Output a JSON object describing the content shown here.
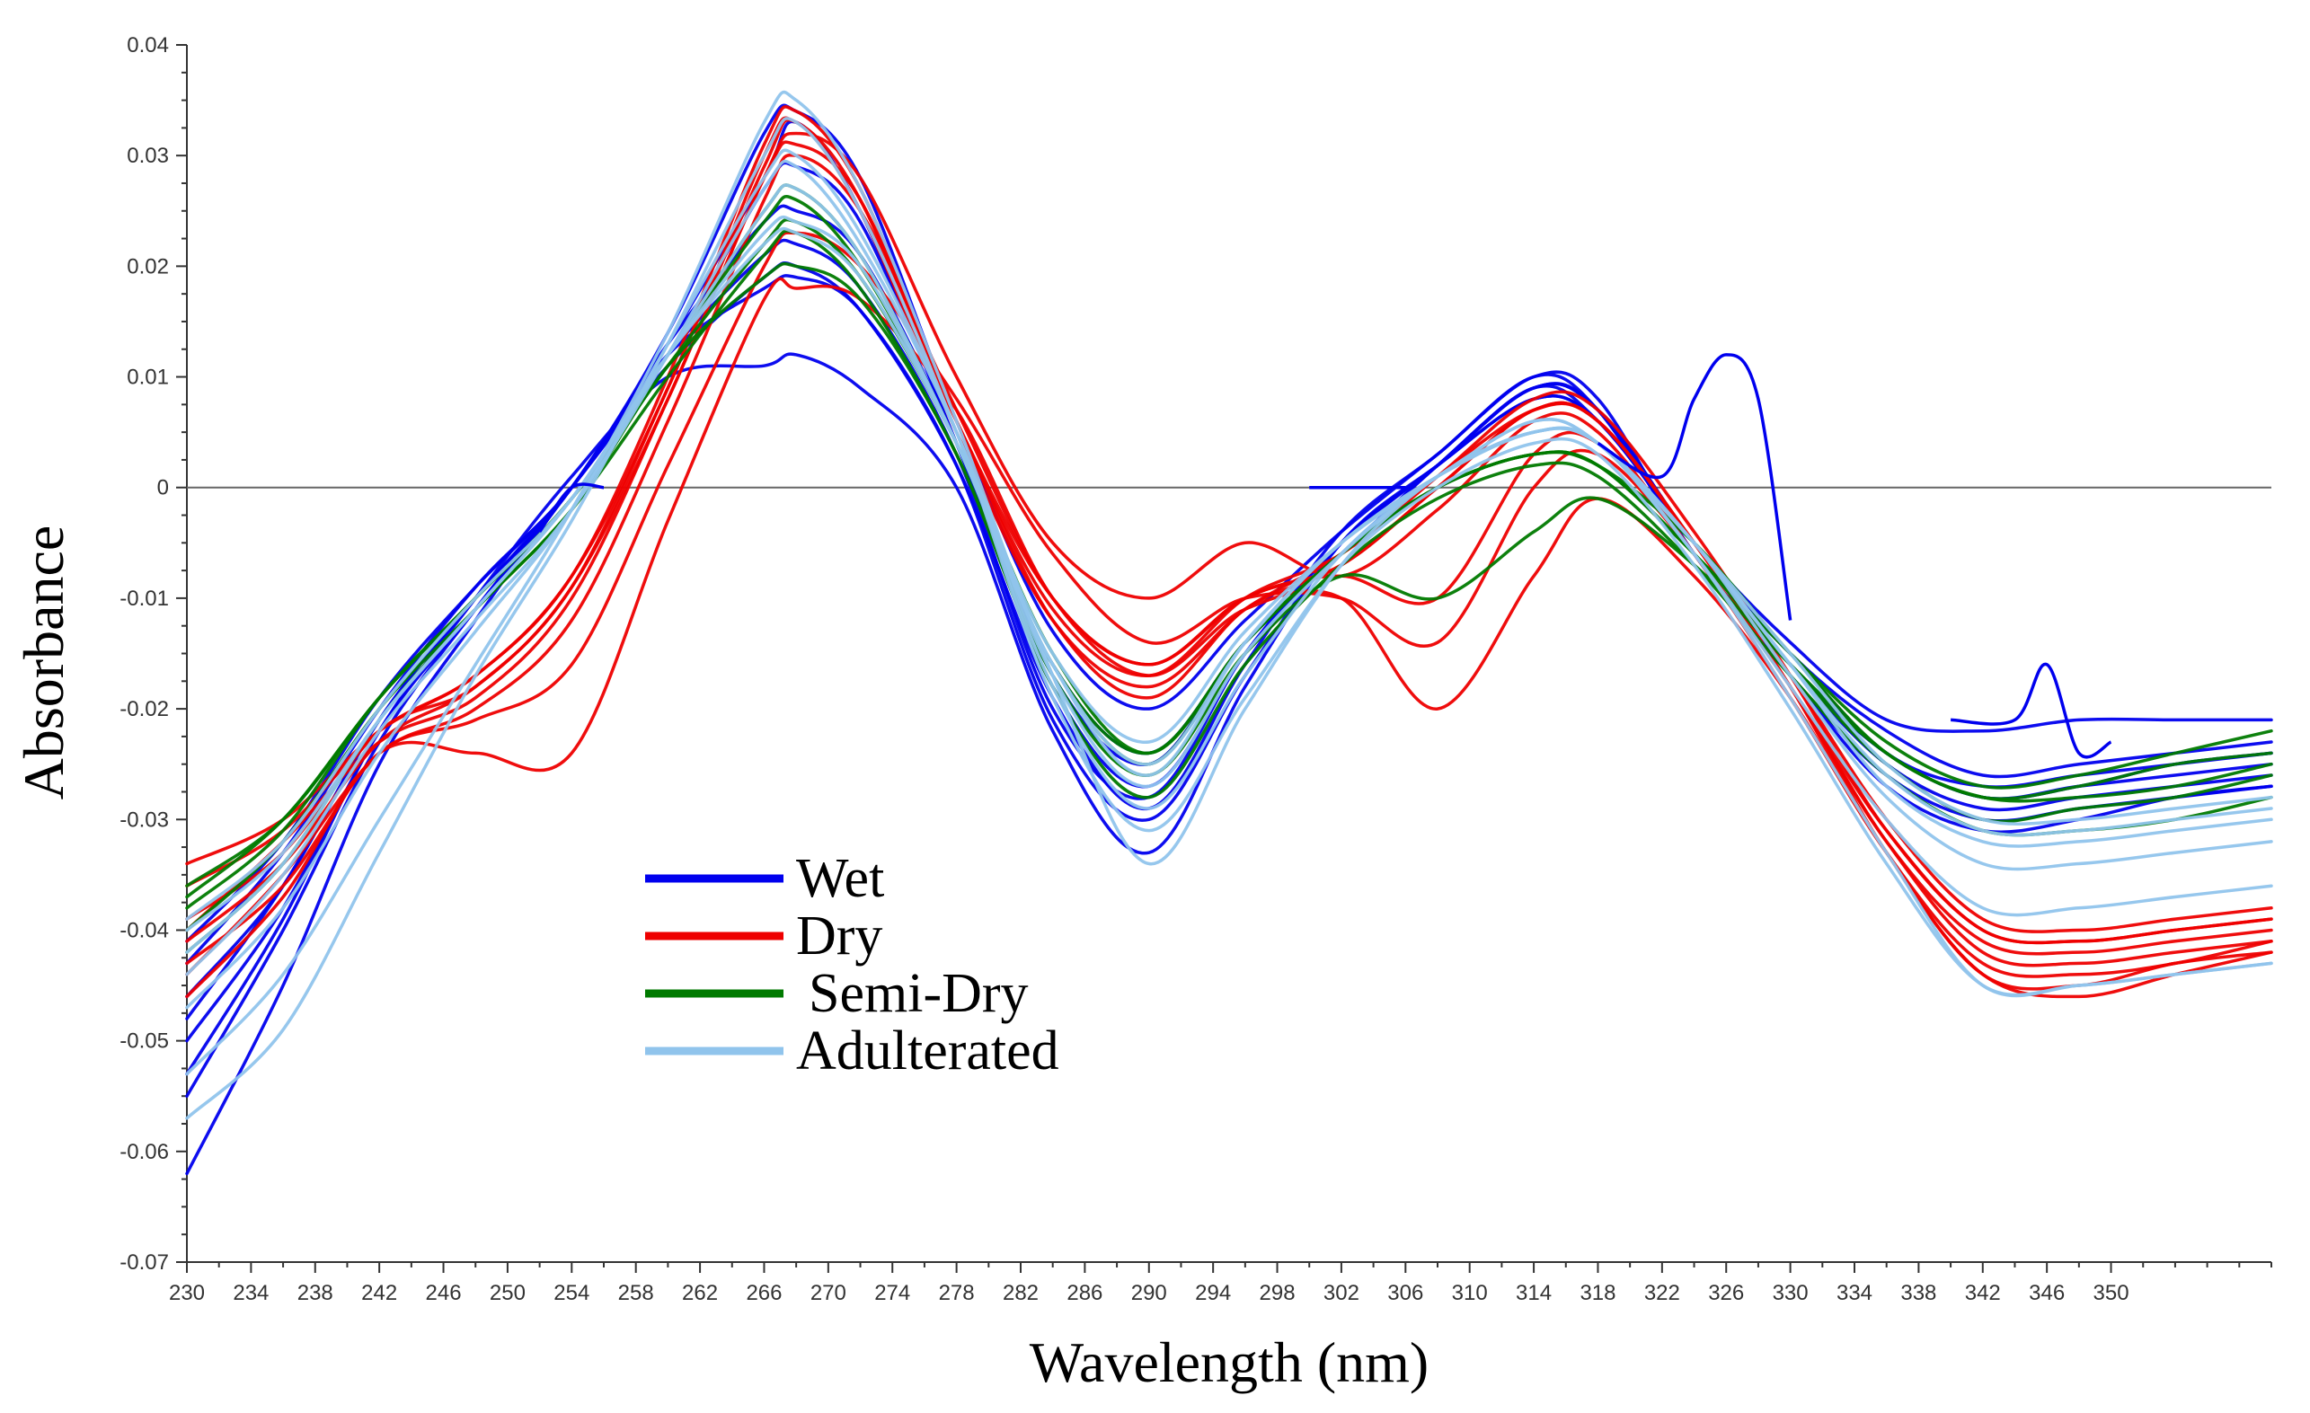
{
  "chart_data": {
    "type": "line",
    "title": "",
    "xlabel": "Wavelength (nm)",
    "ylabel": "Absorbance",
    "xlim": [
      230,
      360
    ],
    "ylim": [
      -0.07,
      0.04
    ],
    "grid": false,
    "zero_line": true,
    "legend_position": "lower-left",
    "x_ticks": [
      230,
      234,
      238,
      242,
      246,
      250,
      254,
      258,
      262,
      266,
      270,
      274,
      278,
      282,
      286,
      290,
      294,
      298,
      302,
      306,
      310,
      314,
      318,
      322,
      326,
      330,
      334,
      338,
      342,
      346,
      350
    ],
    "x_tick_labels": [
      "230",
      "234",
      "238",
      "242",
      "246",
      "250",
      "254",
      "258",
      "262",
      "266",
      "270",
      "274",
      "278",
      "282",
      "286",
      "290",
      "294",
      "298",
      "302",
      "306",
      "310",
      "314",
      "318",
      "322",
      "326",
      "330",
      "334",
      "338",
      "342",
      "346",
      "350"
    ],
    "y_ticks": [
      0.04,
      0.03,
      0.02,
      0.01,
      0,
      -0.01,
      -0.02,
      -0.03,
      -0.04,
      -0.05,
      -0.06,
      -0.07
    ],
    "y_tick_labels": [
      "0.04",
      "0.03",
      "0.02",
      "0.01",
      "0",
      "-0.01",
      "-0.02",
      "-0.03",
      "-0.04",
      "-0.05",
      "-0.06",
      "-0.07"
    ],
    "x": [
      230,
      236,
      242,
      248,
      254,
      260,
      266,
      268,
      272,
      278,
      284,
      290,
      296,
      302,
      308,
      314,
      318,
      324,
      330,
      336,
      342,
      348,
      354,
      360
    ],
    "series": [
      {
        "name": "Wet",
        "color": "#0000ee",
        "curves": [
          [
            -0.043,
            -0.033,
            -0.02,
            -0.009,
            0.0,
            0.013,
            0.028,
            0.033,
            0.025,
            0.004,
            -0.016,
            -0.024,
            -0.014,
            -0.006,
            0.002,
            0.009,
            0.007,
            -0.005,
            -0.015,
            -0.022,
            -0.026,
            -0.025,
            -0.024,
            -0.023
          ],
          [
            -0.062,
            -0.045,
            -0.025,
            -0.012,
            0.0,
            0.011,
            0.019,
            0.02,
            0.016,
            0.002,
            -0.019,
            -0.029,
            -0.016,
            -0.004,
            0.003,
            0.01,
            0.008,
            -0.006,
            -0.016,
            -0.024,
            -0.028,
            -0.027,
            -0.025,
            -0.024
          ],
          [
            -0.05,
            -0.038,
            -0.022,
            -0.01,
            0.001,
            0.01,
            0.011,
            0.012,
            0.009,
            0.0,
            -0.022,
            -0.033,
            -0.018,
            -0.005,
            0.002,
            0.008,
            0.006,
            -0.005,
            -0.014,
            -0.021,
            -0.022,
            -0.021,
            -0.021,
            -0.021
          ],
          [
            -0.046,
            -0.036,
            -0.021,
            -0.01,
            0.0,
            0.014,
            0.032,
            0.034,
            0.028,
            0.006,
            -0.013,
            -0.02,
            -0.012,
            -0.004,
            0.003,
            0.01,
            0.007,
            -0.006,
            -0.017,
            -0.026,
            -0.03,
            -0.029,
            -0.028,
            -0.027
          ],
          [
            -0.055,
            -0.04,
            -0.023,
            -0.011,
            0.0,
            0.012,
            0.021,
            0.022,
            0.018,
            0.003,
            -0.02,
            -0.028,
            -0.015,
            -0.005,
            0.002,
            0.009,
            0.006,
            -0.005,
            -0.016,
            -0.025,
            -0.029,
            -0.028,
            -0.027,
            -0.026
          ],
          [
            -0.041,
            -0.032,
            -0.019,
            -0.009,
            0.0,
            0.013,
            0.024,
            0.025,
            0.021,
            0.004,
            -0.017,
            -0.025,
            -0.014,
            -0.006,
            0.002,
            0.009,
            0.007,
            -0.005,
            -0.015,
            -0.024,
            -0.027,
            -0.026,
            -0.025,
            -0.024
          ],
          [
            -0.048,
            -0.036,
            -0.021,
            -0.01,
            0.0,
            0.012,
            0.027,
            0.029,
            0.024,
            0.004,
            -0.018,
            -0.027,
            -0.015,
            -0.005,
            0.002,
            0.008,
            0.006,
            -0.005,
            -0.016,
            -0.024,
            -0.028,
            -0.027,
            -0.026,
            -0.025
          ],
          [
            -0.053,
            -0.039,
            -0.022,
            -0.011,
            0.0,
            0.012,
            0.018,
            0.019,
            0.016,
            0.002,
            -0.021,
            -0.03,
            -0.017,
            -0.005,
            0.002,
            0.009,
            0.007,
            -0.006,
            -0.017,
            -0.027,
            -0.031,
            -0.03,
            -0.028,
            -0.027
          ]
        ]
      },
      {
        "name": "Dry",
        "color": "#ee0000",
        "curves": [
          [
            -0.034,
            -0.03,
            -0.022,
            -0.017,
            -0.008,
            0.009,
            0.03,
            0.033,
            0.026,
            0.006,
            -0.01,
            -0.016,
            -0.01,
            -0.007,
            0.0,
            0.007,
            0.006,
            -0.005,
            -0.018,
            -0.032,
            -0.041,
            -0.042,
            -0.041,
            -0.04
          ],
          [
            -0.04,
            -0.032,
            -0.023,
            -0.019,
            -0.01,
            0.008,
            0.028,
            0.032,
            0.028,
            0.01,
            -0.005,
            -0.01,
            -0.005,
            -0.008,
            -0.002,
            0.006,
            0.005,
            -0.006,
            -0.019,
            -0.033,
            -0.043,
            -0.044,
            -0.043,
            -0.041
          ],
          [
            -0.043,
            -0.036,
            -0.024,
            -0.021,
            -0.016,
            0.002,
            0.02,
            0.023,
            0.02,
            0.008,
            -0.006,
            -0.014,
            -0.01,
            -0.01,
            -0.014,
            0.0,
            0.003,
            -0.006,
            -0.018,
            -0.031,
            -0.04,
            -0.041,
            -0.04,
            -0.039
          ],
          [
            -0.046,
            -0.037,
            -0.024,
            -0.024,
            -0.024,
            -0.003,
            0.017,
            0.018,
            0.017,
            0.007,
            -0.01,
            -0.017,
            -0.011,
            -0.01,
            -0.02,
            -0.008,
            -0.001,
            -0.008,
            -0.019,
            -0.033,
            -0.044,
            -0.045,
            -0.043,
            -0.042
          ],
          [
            -0.041,
            -0.034,
            -0.023,
            -0.018,
            -0.009,
            0.009,
            0.029,
            0.033,
            0.025,
            0.005,
            -0.012,
            -0.018,
            -0.011,
            -0.006,
            0.001,
            0.007,
            0.006,
            -0.005,
            -0.017,
            -0.03,
            -0.039,
            -0.04,
            -0.039,
            -0.038
          ],
          [
            -0.036,
            -0.031,
            -0.022,
            -0.017,
            -0.008,
            0.01,
            0.031,
            0.034,
            0.027,
            0.006,
            -0.011,
            -0.017,
            -0.01,
            -0.006,
            0.001,
            0.008,
            0.007,
            -0.004,
            -0.017,
            -0.031,
            -0.04,
            -0.041,
            -0.04,
            -0.039
          ],
          [
            -0.044,
            -0.035,
            -0.024,
            -0.02,
            -0.012,
            0.006,
            0.026,
            0.03,
            0.025,
            0.007,
            -0.01,
            -0.016,
            -0.01,
            -0.008,
            -0.01,
            0.003,
            0.004,
            -0.006,
            -0.018,
            -0.032,
            -0.042,
            -0.043,
            -0.042,
            -0.041
          ],
          [
            -0.039,
            -0.033,
            -0.022,
            -0.018,
            -0.009,
            0.008,
            0.028,
            0.031,
            0.026,
            0.006,
            -0.012,
            -0.019,
            -0.011,
            -0.007,
            0.0,
            0.007,
            0.006,
            -0.005,
            -0.018,
            -0.033,
            -0.044,
            -0.046,
            -0.044,
            -0.042
          ]
        ]
      },
      {
        "name": "Semi-Dry",
        "color": "#007a00",
        "curves": [
          [
            -0.036,
            -0.03,
            -0.019,
            -0.01,
            -0.001,
            0.011,
            0.022,
            0.024,
            0.019,
            0.004,
            -0.015,
            -0.024,
            -0.014,
            -0.006,
            0.0,
            0.003,
            0.002,
            -0.006,
            -0.015,
            -0.023,
            -0.027,
            -0.026,
            -0.024,
            -0.022
          ],
          [
            -0.04,
            -0.032,
            -0.02,
            -0.011,
            -0.002,
            0.01,
            0.021,
            0.023,
            0.018,
            0.003,
            -0.017,
            -0.026,
            -0.015,
            -0.008,
            -0.01,
            -0.004,
            -0.001,
            -0.007,
            -0.016,
            -0.024,
            -0.028,
            -0.027,
            -0.025,
            -0.024
          ],
          [
            -0.038,
            -0.031,
            -0.019,
            -0.01,
            -0.001,
            0.012,
            0.024,
            0.026,
            0.02,
            0.004,
            -0.016,
            -0.025,
            -0.014,
            -0.006,
            0.0,
            0.003,
            0.002,
            -0.006,
            -0.016,
            -0.025,
            -0.03,
            -0.029,
            -0.028,
            -0.026
          ],
          [
            -0.042,
            -0.034,
            -0.021,
            -0.011,
            -0.002,
            0.011,
            0.019,
            0.02,
            0.017,
            0.003,
            -0.018,
            -0.028,
            -0.016,
            -0.007,
            -0.001,
            0.002,
            0.001,
            -0.007,
            -0.017,
            -0.026,
            -0.031,
            -0.031,
            -0.03,
            -0.028
          ],
          [
            -0.037,
            -0.03,
            -0.019,
            -0.01,
            -0.001,
            0.012,
            0.025,
            0.027,
            0.021,
            0.004,
            -0.016,
            -0.024,
            -0.014,
            -0.006,
            0.0,
            0.003,
            0.002,
            -0.005,
            -0.015,
            -0.024,
            -0.028,
            -0.028,
            -0.027,
            -0.025
          ]
        ]
      },
      {
        "name": "Adulterated",
        "color": "#90c4ec",
        "curves": [
          [
            -0.053,
            -0.044,
            -0.03,
            -0.016,
            -0.002,
            0.014,
            0.033,
            0.035,
            0.027,
            0.006,
            -0.017,
            -0.034,
            -0.02,
            -0.007,
            0.001,
            0.005,
            0.004,
            -0.006,
            -0.019,
            -0.033,
            -0.045,
            -0.045,
            -0.044,
            -0.043
          ],
          [
            -0.057,
            -0.049,
            -0.033,
            -0.017,
            -0.003,
            0.013,
            0.03,
            0.033,
            0.025,
            0.005,
            -0.019,
            -0.031,
            -0.019,
            -0.007,
            0.0,
            0.004,
            0.003,
            -0.007,
            -0.02,
            -0.034,
            -0.045,
            -0.045,
            -0.044,
            -0.043
          ],
          [
            -0.04,
            -0.033,
            -0.021,
            -0.011,
            -0.001,
            0.012,
            0.025,
            0.027,
            0.021,
            0.004,
            -0.016,
            -0.025,
            -0.014,
            -0.005,
            0.001,
            0.005,
            0.004,
            -0.005,
            -0.016,
            -0.026,
            -0.031,
            -0.031,
            -0.03,
            -0.029
          ],
          [
            -0.044,
            -0.035,
            -0.022,
            -0.012,
            -0.002,
            0.012,
            0.027,
            0.029,
            0.022,
            0.005,
            -0.017,
            -0.027,
            -0.015,
            -0.006,
            0.001,
            0.005,
            0.004,
            -0.005,
            -0.017,
            -0.028,
            -0.034,
            -0.034,
            -0.033,
            -0.032
          ],
          [
            -0.042,
            -0.034,
            -0.021,
            -0.011,
            -0.001,
            0.012,
            0.023,
            0.024,
            0.02,
            0.004,
            -0.016,
            -0.026,
            -0.014,
            -0.005,
            0.001,
            0.006,
            0.004,
            -0.005,
            -0.016,
            -0.027,
            -0.032,
            -0.032,
            -0.031,
            -0.03
          ],
          [
            -0.047,
            -0.038,
            -0.024,
            -0.013,
            -0.002,
            0.013,
            0.028,
            0.03,
            0.023,
            0.005,
            -0.018,
            -0.029,
            -0.017,
            -0.006,
            0.001,
            0.005,
            0.004,
            -0.006,
            -0.018,
            -0.03,
            -0.038,
            -0.038,
            -0.037,
            -0.036
          ],
          [
            -0.039,
            -0.032,
            -0.02,
            -0.01,
            -0.001,
            0.012,
            0.022,
            0.023,
            0.019,
            0.004,
            -0.015,
            -0.023,
            -0.013,
            -0.005,
            0.001,
            0.006,
            0.004,
            -0.005,
            -0.015,
            -0.025,
            -0.03,
            -0.03,
            -0.029,
            -0.028
          ]
        ]
      }
    ],
    "annotations": [
      {
        "series": "Wet",
        "x": [
          300,
          302,
          304,
          306
        ],
        "y": [
          0.0,
          0.0,
          0.0,
          0.0
        ]
      },
      {
        "series": "Wet",
        "x": [
          318,
          322,
          324,
          326,
          328,
          330
        ],
        "y": [
          0.004,
          0.001,
          0.008,
          0.012,
          0.008,
          -0.012
        ]
      },
      {
        "series": "Wet",
        "x": [
          340,
          344,
          346,
          348,
          350
        ],
        "y": [
          -0.021,
          -0.021,
          -0.016,
          -0.024,
          -0.023
        ]
      },
      {
        "series": "Wet",
        "x": [
          252,
          254,
          256
        ],
        "y": [
          -0.004,
          0.0,
          0.0
        ]
      }
    ]
  }
}
